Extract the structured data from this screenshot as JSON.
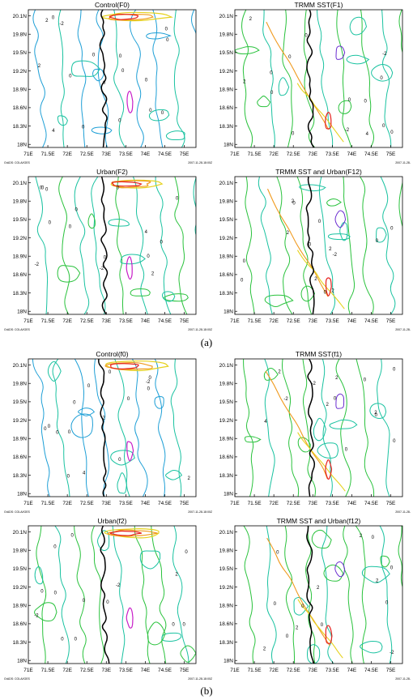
{
  "captions": [
    "(a)",
    "(b)"
  ],
  "x_ticks": [
    "71E",
    "71.5E",
    "72E",
    "72.5E",
    "73E",
    "73.5E",
    "74E",
    "74.5E",
    "75E"
  ],
  "y_ticks": [
    "20.1N",
    "19.8N",
    "19.5N",
    "19.2N",
    "18.9N",
    "18.6N",
    "18.3N",
    "18N"
  ],
  "colors": {
    "blue": "#1e9fd6",
    "teal": "#19c2a0",
    "green": "#29c23c",
    "yellow": "#e6d21e",
    "orange": "#f09a1e",
    "red": "#e6201e",
    "magenta": "#c81ec8",
    "purple": "#6a2cd0",
    "coast": "#000000"
  },
  "chart_data": [
    {
      "type": "contour",
      "title": "Control(F0)",
      "footer_left": "GrADS: COLA/IGES",
      "footer_right": "2007-11-28-18:00Z",
      "xlim": [
        71,
        75.3
      ],
      "ylim": [
        17.95,
        20.2
      ],
      "contour_labels": [
        "0",
        "2",
        "4",
        "-2",
        "2",
        "0",
        "0",
        "0",
        "0",
        "0",
        "0",
        "0",
        "0",
        "0",
        "0",
        "0",
        "0"
      ]
    },
    {
      "type": "contour",
      "title": "TRMM  SST(F1)",
      "footer_left": "",
      "footer_right": "2007-11-28-",
      "xlim": [
        71,
        75.3
      ],
      "ylim": [
        17.95,
        20.2
      ],
      "contour_labels": [
        "2",
        "0",
        "-2",
        "0",
        "0",
        "0",
        "0",
        "2",
        "4",
        "-2",
        "0",
        "0",
        "0",
        "0",
        "0"
      ]
    },
    {
      "type": "contour",
      "title": "Urban(F2)",
      "footer_left": "GrADS: COLA/IGES",
      "footer_right": "2007-11-28-18:00Z",
      "xlim": [
        71,
        75.3
      ],
      "ylim": [
        17.95,
        20.2
      ],
      "contour_labels": [
        "0",
        "2",
        "4",
        "0",
        "-2",
        "0",
        "0",
        "0",
        "0",
        "0",
        "0",
        "-2",
        "0",
        "0",
        "0"
      ]
    },
    {
      "type": "contour",
      "title": "TRMM SST and Urban(F12)",
      "footer_left": "",
      "footer_right": "2007-11-28-",
      "xlim": [
        71,
        75.3
      ],
      "ylim": [
        17.95,
        20.2
      ],
      "contour_labels": [
        "2",
        "0",
        "2",
        "2",
        "-2",
        "0",
        "2",
        "0",
        "0",
        "0",
        "0",
        "0",
        "2",
        "0"
      ]
    },
    {
      "type": "contour",
      "title": "Control(f0)",
      "footer_left": "GrADS: COLA/IGES",
      "footer_right": "2007-11-28-18:00Z",
      "xlim": [
        71,
        75.3
      ],
      "ylim": [
        17.95,
        20.2
      ],
      "contour_labels": [
        "0",
        "2",
        "4",
        "-2",
        "2",
        "0",
        "0",
        "0",
        "0",
        "0",
        "0",
        "0",
        "0",
        "0",
        "0",
        "0"
      ]
    },
    {
      "type": "contour",
      "title": "TRMM  SST(f1)",
      "footer_left": "",
      "footer_right": "2007-11-28-",
      "xlim": [
        71,
        75.3
      ],
      "ylim": [
        17.95,
        20.2
      ],
      "contour_labels": [
        "0",
        "2",
        "-2",
        "0",
        "-2",
        "2",
        "0",
        "0",
        "2",
        "4",
        "0",
        "2",
        "0"
      ]
    },
    {
      "type": "contour",
      "title": "Urban(f2)",
      "footer_left": "GrADS: COLA/IGES",
      "footer_right": "2007-11-28-18:00Z",
      "xlim": [
        71,
        75.3
      ],
      "ylim": [
        17.95,
        20.2
      ],
      "contour_labels": [
        "0",
        "0",
        "2",
        "-2",
        "0",
        "0",
        "0",
        "0",
        "0",
        "0",
        "0",
        "-2",
        "0",
        "0"
      ]
    },
    {
      "type": "contour",
      "title": "TRMM SST and Urban(f12)",
      "footer_left": "",
      "footer_right": "2007-11-28-",
      "xlim": [
        71,
        75.3
      ],
      "ylim": [
        17.95,
        20.2
      ],
      "contour_labels": [
        "2",
        "0",
        "2",
        "0",
        "-2",
        "0",
        "2",
        "0",
        "0",
        "2",
        "0",
        "0",
        "2",
        "0"
      ]
    }
  ]
}
